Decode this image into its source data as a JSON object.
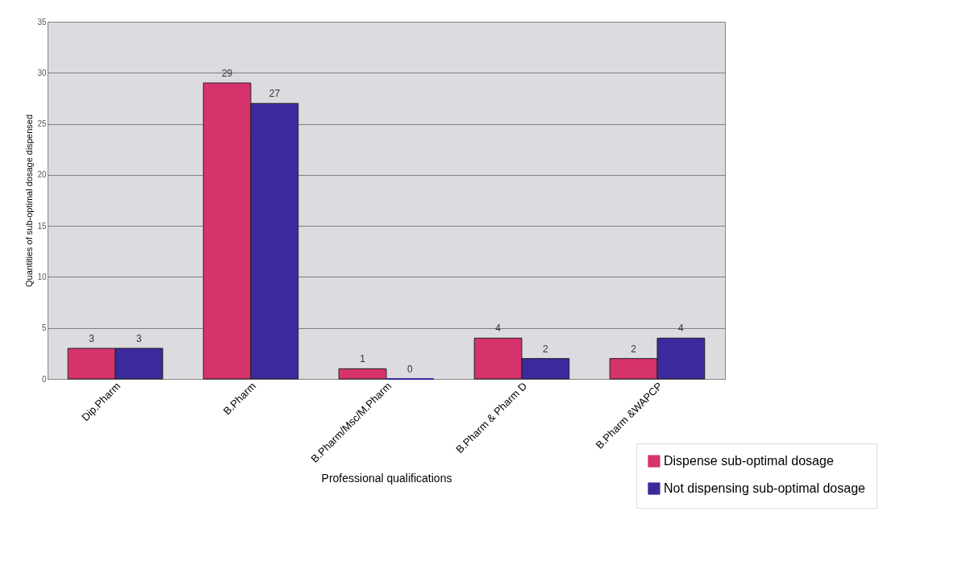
{
  "chart_data": {
    "type": "bar",
    "xlabel": "Professional qualifications",
    "ylabel": "Quantities of sub-optimal dosage dispensed",
    "categories": [
      "Dip.Pharm",
      "B.Pharm",
      "B.Pharm/Msc/M.Pharm",
      "B.Pharm & Pharm D",
      "B.Pharm &WAPCP"
    ],
    "series": [
      {
        "name": "Dispense sub-optimal dosage",
        "color": "#d6336c",
        "values": [
          3,
          29,
          1,
          4,
          2
        ]
      },
      {
        "name": "Not dispensing sub-optimal dosage",
        "color": "#3b2a9c",
        "values": [
          3,
          27,
          0,
          2,
          4
        ]
      }
    ],
    "ylim": [
      0,
      35
    ],
    "yticks": [
      0,
      5,
      10,
      15,
      20,
      25,
      30,
      35
    ],
    "grid": "y",
    "legend": "bottom right",
    "data_labels": true
  }
}
